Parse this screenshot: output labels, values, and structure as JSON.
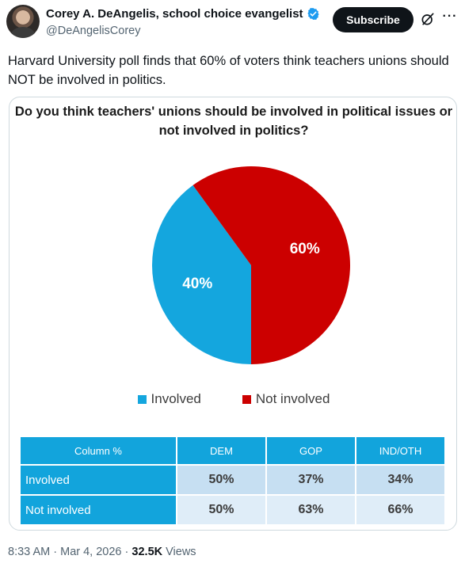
{
  "author": {
    "name": "Corey A. DeAngelis, school choice evangelist",
    "handle": "@DeAngelisCorey",
    "verified_color": "#1d9bf0"
  },
  "actions": {
    "subscribe_label": "Subscribe",
    "grok_icon": "grok-icon",
    "more_icon": "more-icon",
    "more_glyph": "···"
  },
  "tweet": {
    "text": "Harvard University poll finds that 60% of voters think teachers unions should NOT be involved in politics."
  },
  "chart_data": {
    "type": "pie",
    "title": "Do you think teachers' unions should be involved in political issues or not involved in politics?",
    "slices": [
      {
        "label": "Involved",
        "value": 40,
        "display": "40%",
        "color": "#14a6de"
      },
      {
        "label": "Not involved",
        "value": 60,
        "display": "60%",
        "color": "#cc0000"
      }
    ],
    "legend": {
      "placement": "bottom",
      "entries": [
        "Involved",
        "Not involved"
      ]
    },
    "table": {
      "header": [
        "Column %",
        "DEM",
        "GOP",
        "IND/OTH"
      ],
      "rows": [
        {
          "label": "Involved",
          "values": [
            "50%",
            "37%",
            "34%"
          ]
        },
        {
          "label": "Not involved",
          "values": [
            "50%",
            "63%",
            "66%"
          ]
        }
      ]
    }
  },
  "meta": {
    "time": "8:33 AM",
    "separator": "·",
    "date": "Mar 4, 2026",
    "views_count": "32.5K",
    "views_label": "Views"
  }
}
